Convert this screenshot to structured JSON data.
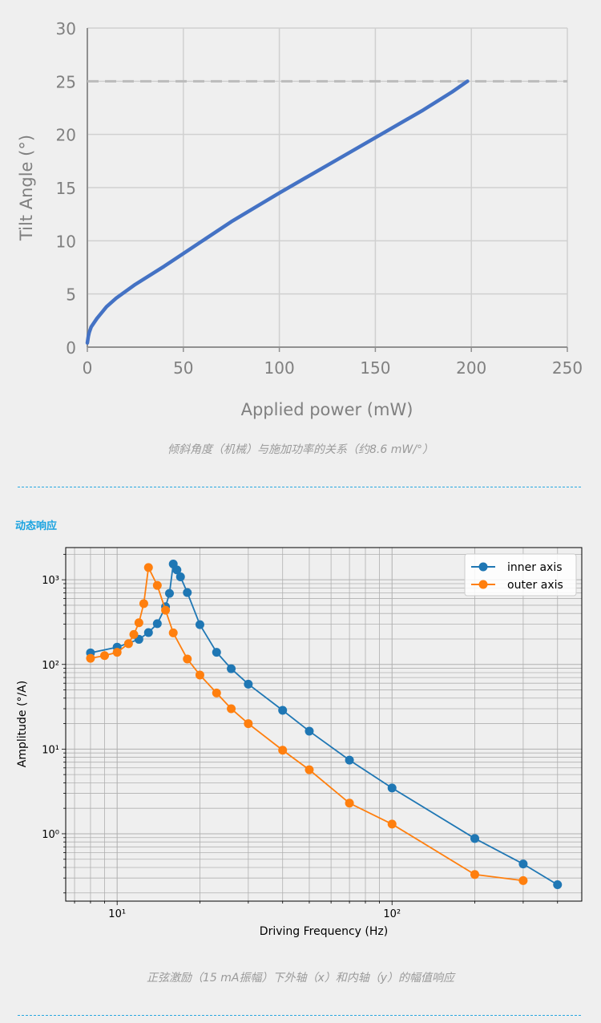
{
  "figure1": {
    "caption": "倾斜角度（机械）与施加功率的关系（约8.6 mW/°）"
  },
  "section2": {
    "title": "动态响应",
    "caption": "正弦激励（15 mA振幅）下外轴（x）和内轴（y）的幅值响应"
  },
  "chart_data": [
    {
      "type": "line",
      "title": "",
      "xlabel": "Applied power (mW)",
      "ylabel": "Tilt Angle (°)",
      "xlim": [
        0,
        250
      ],
      "ylim": [
        0,
        30
      ],
      "xticks": [
        0,
        50,
        100,
        150,
        200,
        250
      ],
      "yticks": [
        0,
        5,
        10,
        15,
        20,
        25,
        30
      ],
      "grid": true,
      "color": "#4472c4",
      "reference_line": {
        "y": 25,
        "style": "dashed",
        "color": "#bbbbbb"
      },
      "series": [
        {
          "name": "Tilt angle",
          "x": [
            0,
            0.5,
            1,
            2,
            5,
            10,
            15,
            25,
            40,
            50,
            75,
            100,
            125,
            150,
            175,
            190,
            198
          ],
          "y": [
            0.4,
            1.0,
            1.4,
            1.9,
            2.7,
            3.8,
            4.6,
            5.9,
            7.6,
            8.8,
            11.8,
            14.5,
            17.1,
            19.7,
            22.3,
            24.0,
            25.0
          ]
        }
      ]
    },
    {
      "type": "line",
      "title": "",
      "xlabel": "Driving Frequency (Hz)",
      "ylabel": "Amplitude (°/A)",
      "xscale": "log",
      "yscale": "log",
      "xlim": [
        6.5,
        490
      ],
      "ylim": [
        0.16,
        2400
      ],
      "xticks": [
        10,
        100
      ],
      "xtick_labels": [
        "10¹",
        "10²"
      ],
      "yticks": [
        1,
        10,
        100,
        1000
      ],
      "ytick_labels": [
        "10⁰",
        "10¹",
        "10²",
        "10³"
      ],
      "grid": true,
      "legend": "top-right",
      "series": [
        {
          "name": "inner axis",
          "color": "#1f77b4",
          "x": [
            8,
            10,
            12,
            13,
            14,
            15,
            15.5,
            16,
            16.5,
            17,
            18,
            20,
            23,
            26,
            30,
            40,
            50,
            70,
            100,
            200,
            300,
            400
          ],
          "y": [
            137,
            160,
            198,
            238,
            303,
            480,
            690,
            1535,
            1307,
            1083,
            706,
            295,
            139,
            89,
            58.5,
            28.7,
            16.3,
            7.4,
            3.47,
            0.88,
            0.44,
            0.25
          ]
        },
        {
          "name": "outer axis",
          "color": "#ff7f0e",
          "x": [
            8,
            9,
            10,
            11,
            11.5,
            12,
            12.5,
            13,
            14,
            15,
            16,
            18,
            20,
            23,
            26,
            30,
            40,
            50,
            70,
            100,
            200,
            300
          ],
          "y": [
            118,
            127,
            139,
            176,
            226,
            311,
            523,
            1396,
            858,
            437,
            236,
            116,
            75,
            46,
            30,
            20,
            9.7,
            5.7,
            2.3,
            1.3,
            0.33,
            0.28
          ]
        }
      ]
    }
  ]
}
